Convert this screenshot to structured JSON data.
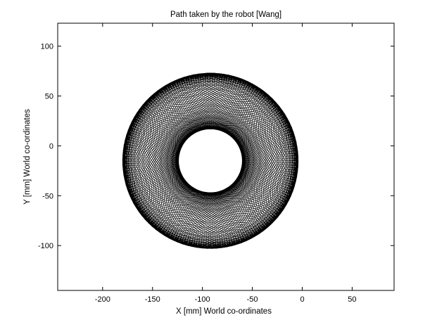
{
  "chart_data": {
    "type": "line",
    "title": "Path taken by the robot [Wang]",
    "xlabel": "X [mm] World co-ordinates",
    "ylabel": "Y [mm] World co-ordinates",
    "xlim": [
      -245,
      92
    ],
    "ylim": [
      -145,
      123
    ],
    "xticks": [
      -200,
      -150,
      -100,
      -50,
      0,
      50
    ],
    "yticks": [
      -100,
      -50,
      0,
      50,
      100
    ],
    "grid": false,
    "legend": "none",
    "line_color": "#000000",
    "path_model": {
      "description_values": "Each frame is a closed loop with fixed radii; its centre orbits around the inner hole and its orientation rotates with the orbit angle.",
      "orbit_center": [
        -92,
        -15
      ],
      "orbit_radius": 28,
      "loop_radii": [
        60,
        70
      ],
      "frames": 110,
      "turns": 1.0,
      "start_point": [
        0,
        0
      ]
    }
  }
}
